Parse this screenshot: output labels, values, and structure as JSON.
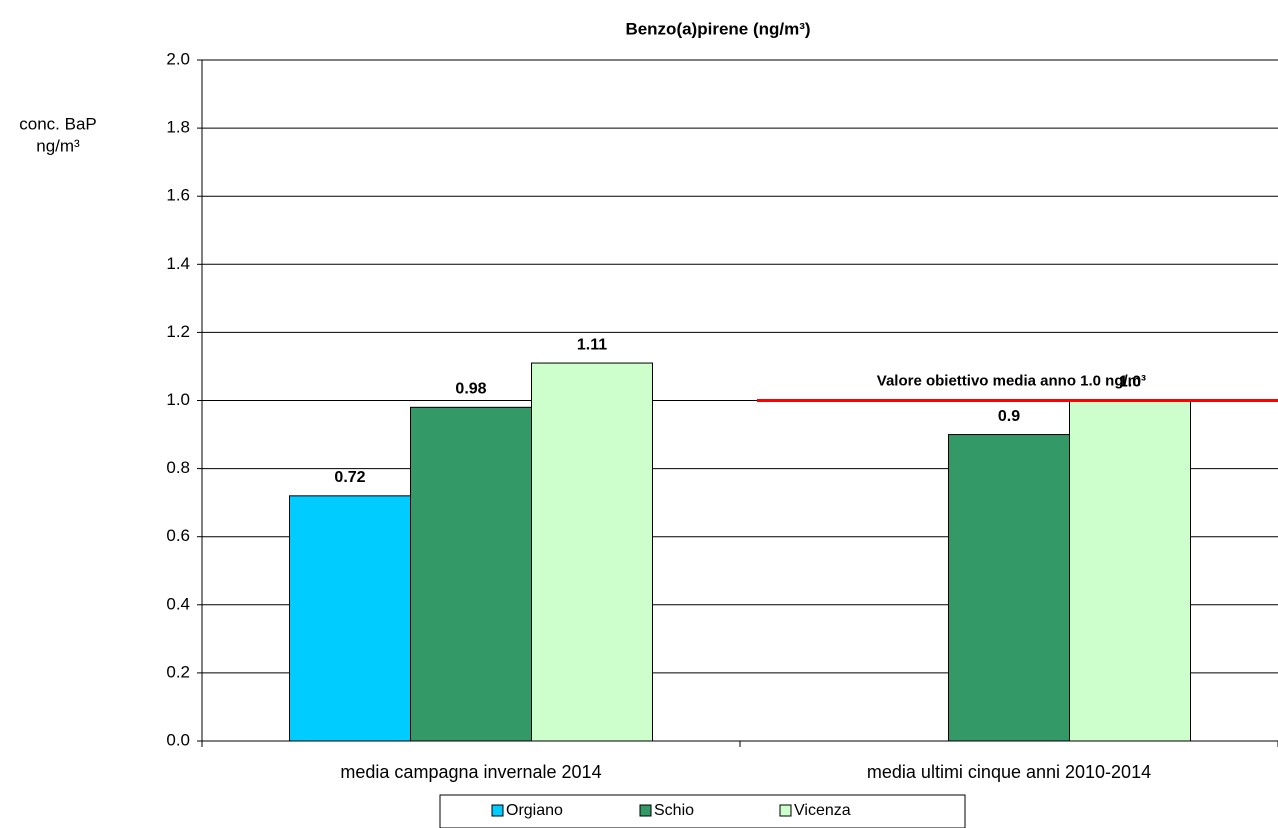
{
  "chart_data": {
    "type": "bar",
    "title": "Benzo(a)pirene (ng/m³)",
    "ylabel": [
      "conc. BaP",
      "ng/m³"
    ],
    "categories": [
      "media campagna invernale 2014",
      "media ultimi cinque anni 2010-2014"
    ],
    "series": [
      {
        "name": "Orgiano",
        "color": "#00ccff",
        "values": [
          0.72,
          null
        ],
        "value_labels": [
          "0.72",
          null
        ]
      },
      {
        "name": "Schio",
        "color": "#339966",
        "values": [
          0.98,
          0.9
        ],
        "value_labels": [
          "0.98",
          "0.9"
        ]
      },
      {
        "name": "Vicenza",
        "color": "#ccffcc",
        "values": [
          1.11,
          1
        ],
        "value_labels": [
          "1.11",
          "1.0"
        ]
      }
    ],
    "ylim": [
      0,
      2
    ],
    "yticks": [
      {
        "value": 0,
        "label": "0.0"
      },
      {
        "value": 0.2,
        "label": "0.2"
      },
      {
        "value": 0.4,
        "label": "0.4"
      },
      {
        "value": 0.6,
        "label": "0.6"
      },
      {
        "value": 0.8,
        "label": "0.8"
      },
      {
        "value": 1,
        "label": "1.0"
      },
      {
        "value": 1.2,
        "label": "1.2"
      },
      {
        "value": 1.4,
        "label": "1.4"
      },
      {
        "value": 1.6,
        "label": "1.6"
      },
      {
        "value": 1.8,
        "label": "1.8"
      },
      {
        "value": 2,
        "label": "2.0"
      }
    ],
    "grid": true,
    "annotation": {
      "text": "Valore obiettivo media anno 1.0 ng/m³",
      "value": 1,
      "color": "#ff0000"
    },
    "legend": "bottom"
  }
}
